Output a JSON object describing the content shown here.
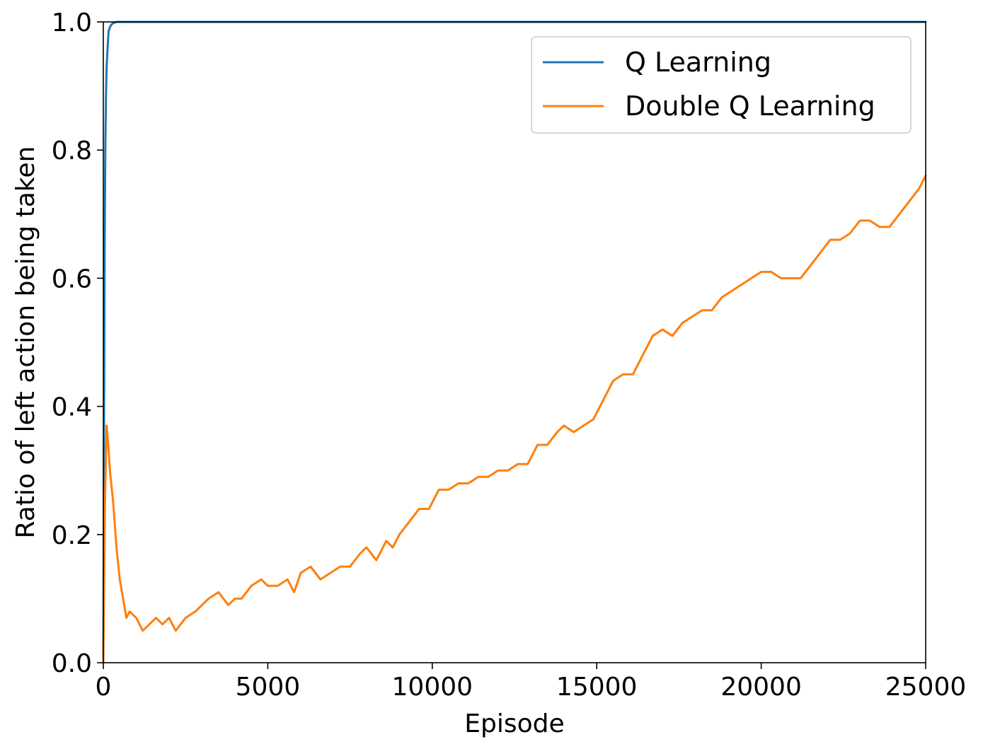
{
  "chart_data": {
    "type": "line",
    "xlabel": "Episode",
    "ylabel": "Ratio of left action being taken",
    "xlim": [
      0,
      25000
    ],
    "ylim": [
      0.0,
      1.0
    ],
    "xticks": [
      {
        "value": 0,
        "label": "0"
      },
      {
        "value": 5000,
        "label": "5000"
      },
      {
        "value": 10000,
        "label": "10000"
      },
      {
        "value": 15000,
        "label": "15000"
      },
      {
        "value": 20000,
        "label": "20000"
      },
      {
        "value": 25000,
        "label": "25000"
      }
    ],
    "yticks": [
      {
        "value": 0.0,
        "label": "0.0"
      },
      {
        "value": 0.2,
        "label": "0.2"
      },
      {
        "value": 0.4,
        "label": "0.4"
      },
      {
        "value": 0.6,
        "label": "0.6"
      },
      {
        "value": 0.8,
        "label": "0.8"
      },
      {
        "value": 1.0,
        "label": "1.0"
      }
    ],
    "grid": false,
    "legend_position": "top-right",
    "series": [
      {
        "name": "Q Learning",
        "color": "#1f77b4",
        "x": [
          0,
          20,
          40,
          60,
          80,
          100,
          130,
          160,
          200,
          250,
          300,
          400,
          1000,
          5000,
          10000,
          15000,
          20000,
          25000
        ],
        "y": [
          0.0,
          0.35,
          0.65,
          0.8,
          0.88,
          0.93,
          0.96,
          0.985,
          0.992,
          0.996,
          0.998,
          1.0,
          1.0,
          1.0,
          1.0,
          1.0,
          1.0,
          1.0
        ]
      },
      {
        "name": "Double Q Learning",
        "color": "#ff7f0e",
        "x": [
          0,
          20,
          50,
          100,
          150,
          200,
          300,
          400,
          500,
          600,
          700,
          800,
          1000,
          1200,
          1400,
          1600,
          1800,
          2000,
          2200,
          2500,
          2800,
          3000,
          3200,
          3500,
          3800,
          4000,
          4200,
          4500,
          4800,
          5000,
          5300,
          5600,
          5800,
          6000,
          6300,
          6600,
          6900,
          7200,
          7500,
          7800,
          8000,
          8300,
          8600,
          8800,
          9000,
          9300,
          9600,
          9900,
          10200,
          10500,
          10800,
          11100,
          11400,
          11700,
          12000,
          12300,
          12600,
          12900,
          13200,
          13500,
          13800,
          14000,
          14300,
          14600,
          14900,
          15200,
          15500,
          15800,
          16100,
          16400,
          16700,
          17000,
          17300,
          17600,
          17900,
          18200,
          18500,
          18800,
          19100,
          19400,
          19700,
          20000,
          20300,
          20600,
          20900,
          21200,
          21500,
          21800,
          22100,
          22400,
          22700,
          23000,
          23300,
          23600,
          23900,
          24200,
          24500,
          24800,
          25000
        ],
        "y": [
          0.0,
          0.1,
          0.25,
          0.37,
          0.34,
          0.3,
          0.25,
          0.18,
          0.13,
          0.1,
          0.07,
          0.08,
          0.07,
          0.05,
          0.06,
          0.07,
          0.06,
          0.07,
          0.05,
          0.07,
          0.08,
          0.09,
          0.1,
          0.11,
          0.09,
          0.1,
          0.1,
          0.12,
          0.13,
          0.12,
          0.12,
          0.13,
          0.11,
          0.14,
          0.15,
          0.13,
          0.14,
          0.15,
          0.15,
          0.17,
          0.18,
          0.16,
          0.19,
          0.18,
          0.2,
          0.22,
          0.24,
          0.24,
          0.27,
          0.27,
          0.28,
          0.28,
          0.29,
          0.29,
          0.3,
          0.3,
          0.31,
          0.31,
          0.34,
          0.34,
          0.36,
          0.37,
          0.36,
          0.37,
          0.38,
          0.41,
          0.44,
          0.45,
          0.45,
          0.48,
          0.51,
          0.52,
          0.51,
          0.53,
          0.54,
          0.55,
          0.55,
          0.57,
          0.58,
          0.59,
          0.6,
          0.61,
          0.61,
          0.6,
          0.6,
          0.6,
          0.62,
          0.64,
          0.66,
          0.66,
          0.67,
          0.69,
          0.69,
          0.68,
          0.68,
          0.7,
          0.72,
          0.74,
          0.76
        ]
      }
    ]
  }
}
